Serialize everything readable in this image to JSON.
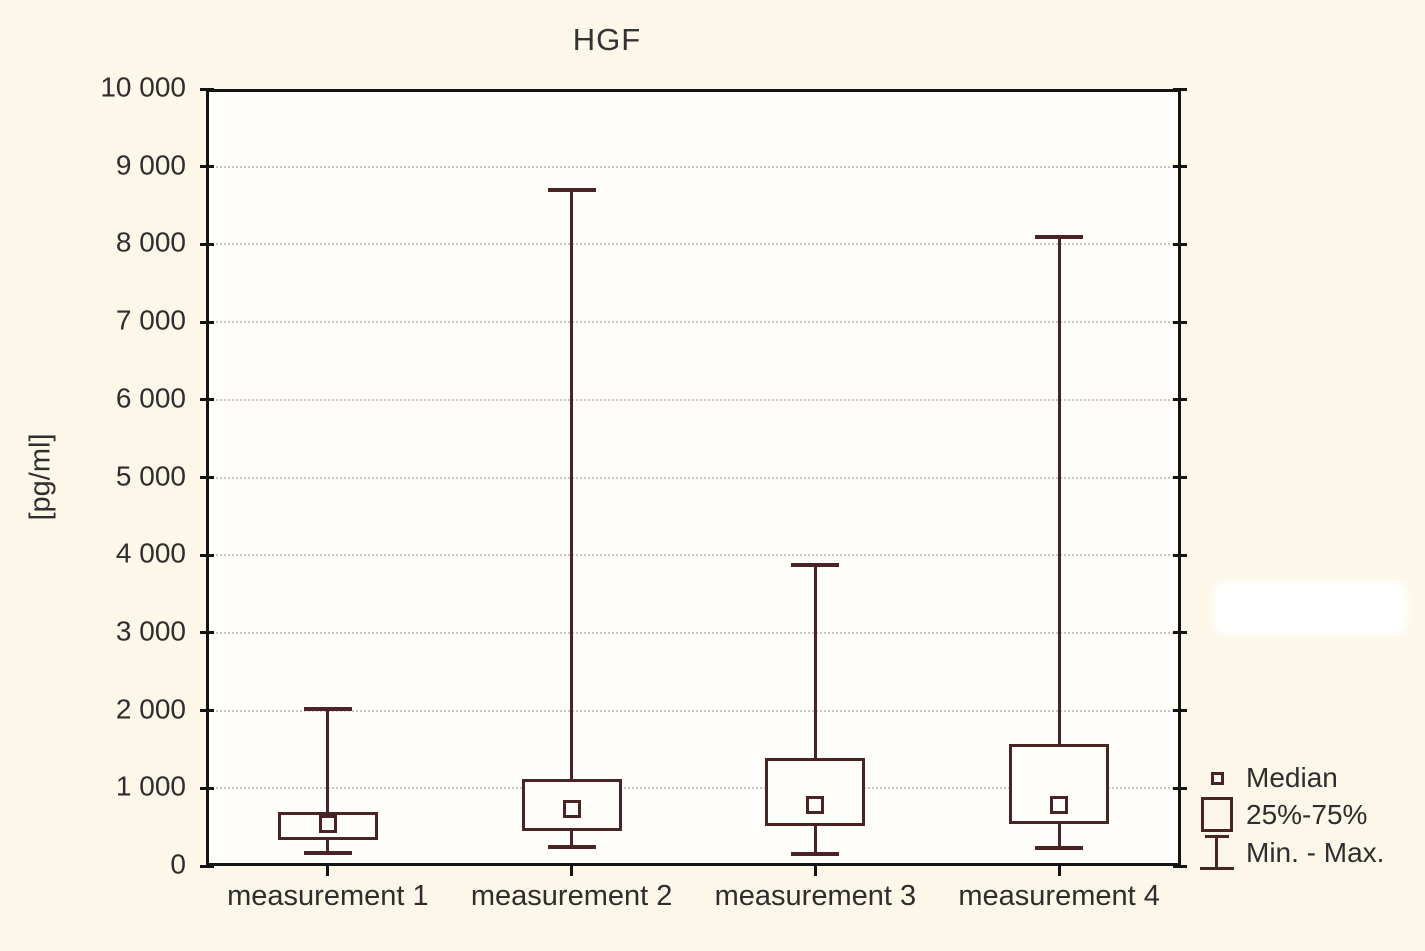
{
  "figure": {
    "title": "HGF",
    "y_axis_label": "[pg/ml]"
  },
  "legend": {
    "items": [
      {
        "icon": "median-square-icon",
        "label": "Median"
      },
      {
        "icon": "box-icon",
        "label": "25%-75%"
      },
      {
        "icon": "whisker-icon",
        "label": "Min. - Max."
      }
    ]
  },
  "chart_data": {
    "type": "boxplot",
    "title": "HGF",
    "xlabel": "",
    "ylabel": "[pg/ml]",
    "ylim": [
      0,
      10000
    ],
    "ytick_step": 1000,
    "ytick_labels": [
      "0",
      "1 000",
      "2 000",
      "3 000",
      "4 000",
      "5 000",
      "6 000",
      "7 000",
      "8 000",
      "9 000",
      "10 000"
    ],
    "categories": [
      "measurement 1",
      "measurement 2",
      "measurement 3",
      "measurement 4"
    ],
    "series": [
      {
        "category": "measurement 1",
        "min": 170,
        "q1": 330,
        "median": 535,
        "q3": 690,
        "max": 2020
      },
      {
        "category": "measurement 2",
        "min": 240,
        "q1": 450,
        "median": 740,
        "q3": 1120,
        "max": 8700
      },
      {
        "category": "measurement 3",
        "min": 150,
        "q1": 510,
        "median": 780,
        "q3": 1390,
        "max": 3870
      },
      {
        "category": "measurement 4",
        "min": 230,
        "q1": 535,
        "median": 790,
        "q3": 1570,
        "max": 8100
      }
    ],
    "grid": "horizontal-dotted",
    "legend_position": "right-bottom",
    "colors": {
      "background": "#fcf7e8",
      "plot_background": "#fffefa",
      "box_stroke": "#4a2424",
      "axis": "#141414",
      "gridline": "#c8c8c8",
      "text": "#2e2e2e"
    }
  }
}
